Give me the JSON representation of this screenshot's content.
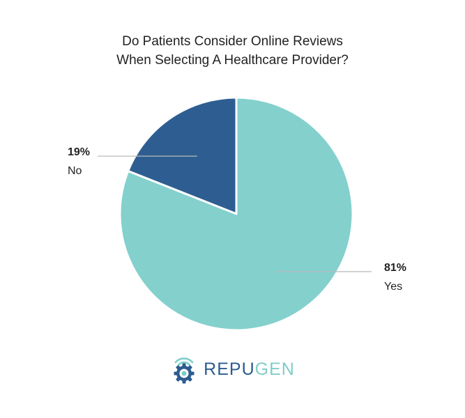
{
  "chart_data": {
    "type": "pie",
    "title_lines": [
      "Do Patients Consider Online Reviews",
      "When Selecting A Healthcare Provider?"
    ],
    "categories": [
      "No",
      "Yes"
    ],
    "values": [
      19,
      81
    ],
    "value_labels": [
      "19%",
      "81%"
    ],
    "colors": [
      "#2e5e91",
      "#84d0cd"
    ],
    "start": "top",
    "direction": "counter-clockwise",
    "legend": "none"
  },
  "logo": {
    "text_part1": "REPU",
    "text_part2": "GEN",
    "colors": {
      "dark": "#2c5b8f",
      "light": "#7ecdc8"
    }
  }
}
